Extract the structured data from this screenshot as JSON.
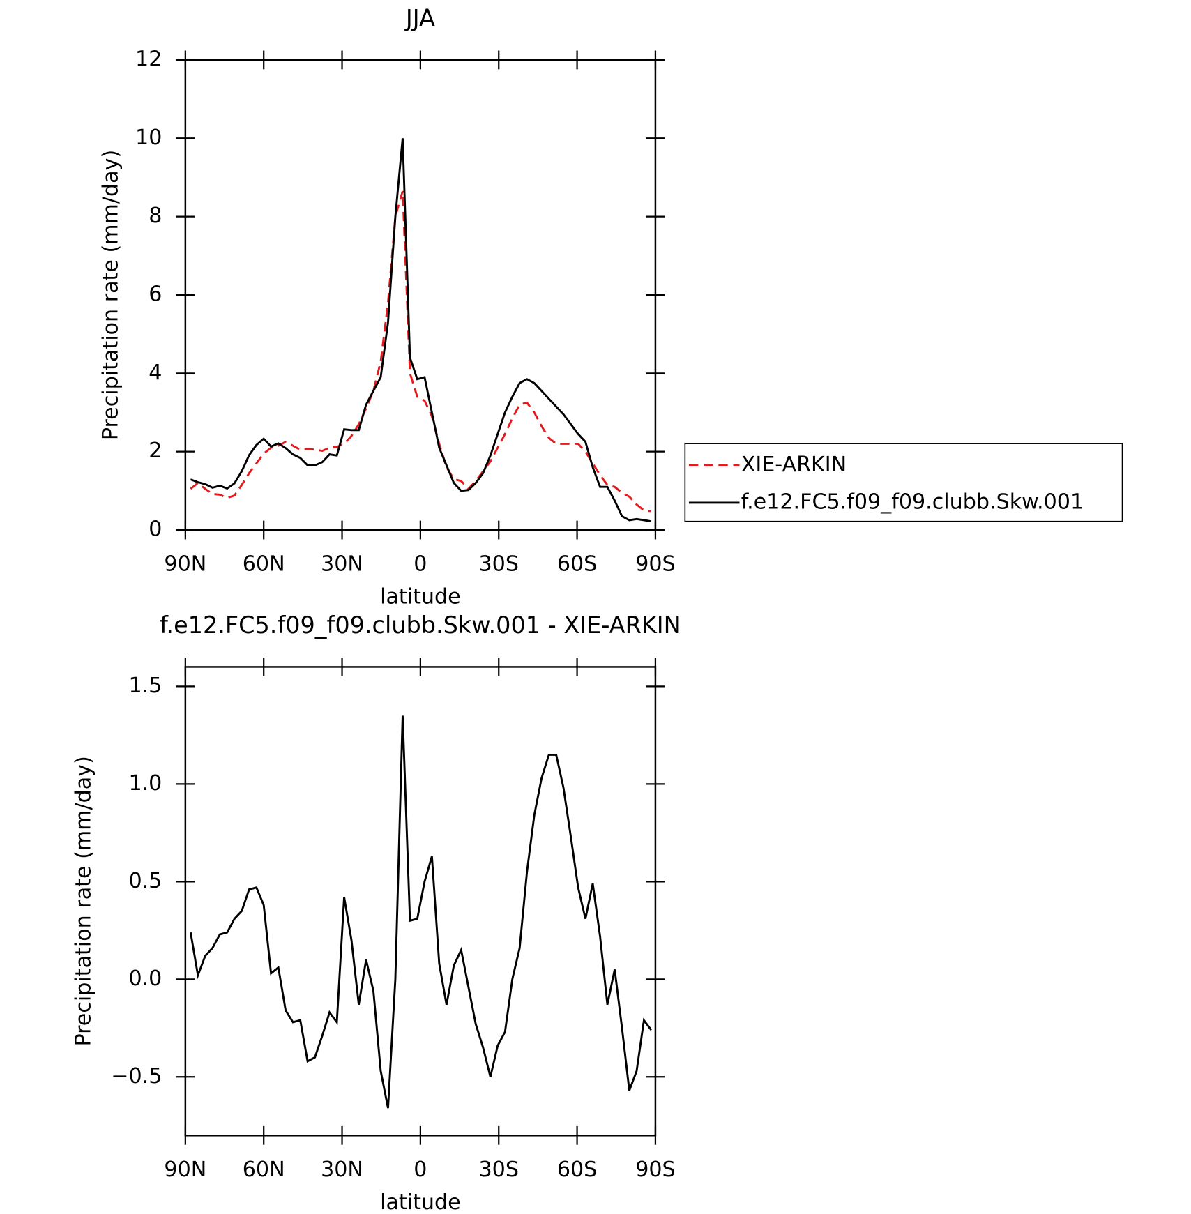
{
  "chart_data": [
    {
      "type": "line",
      "title": "JJA",
      "xlabel": "latitude",
      "ylabel": "Precipitation rate (mm/day)",
      "x": [
        88,
        85.2,
        82.4,
        79.6,
        76.8,
        74,
        71.2,
        68.4,
        65.6,
        62.8,
        60,
        57.2,
        54.4,
        51.6,
        48.8,
        46,
        43.2,
        40.4,
        37.6,
        34.8,
        32,
        29.2,
        26.4,
        23.6,
        20.8,
        18,
        15.2,
        12.4,
        9.6,
        6.8,
        4,
        1.2,
        -1.6,
        -4.4,
        -7.2,
        -10,
        -12.8,
        -15.6,
        -18.4,
        -21.2,
        -24,
        -26.8,
        -29.6,
        -32.4,
        -35.2,
        -38,
        -40.8,
        -43.6,
        -46.4,
        -49.2,
        -52,
        -54.8,
        -57.6,
        -60.4,
        -63.2,
        -66,
        -68.8,
        -71.6,
        -74.4,
        -77.2,
        -80,
        -82.8,
        -85.6,
        -88.4
      ],
      "series": [
        {
          "name": "XIE-ARKIN",
          "color": "#e41a1c",
          "linestyle": "dashed",
          "values": [
            1.05,
            1.2,
            1.05,
            0.92,
            0.9,
            0.82,
            0.88,
            1.15,
            1.45,
            1.7,
            1.95,
            2.1,
            2.15,
            2.25,
            2.15,
            2.05,
            2.07,
            2.05,
            2.02,
            2.1,
            2.12,
            2.2,
            2.4,
            2.7,
            3.1,
            3.55,
            4.3,
            5.8,
            8.0,
            8.65,
            4.0,
            3.4,
            3.3,
            2.9,
            2.2,
            1.6,
            1.3,
            1.25,
            1.05,
            1.25,
            1.5,
            1.75,
            2.1,
            2.45,
            2.85,
            3.2,
            3.25,
            3.0,
            2.65,
            2.35,
            2.2,
            2.2,
            2.2,
            2.2,
            2.0,
            1.7,
            1.4,
            1.15,
            1.1,
            0.95,
            0.85,
            0.65,
            0.5,
            0.48
          ]
        },
        {
          "name": "f.e12.FC5.f09_f09.clubb.Skw.001",
          "color": "#000000",
          "linestyle": "solid",
          "values": [
            1.29,
            1.22,
            1.17,
            1.08,
            1.13,
            1.06,
            1.19,
            1.5,
            1.91,
            2.17,
            2.33,
            2.13,
            2.21,
            2.09,
            1.93,
            1.84,
            1.65,
            1.65,
            1.73,
            1.93,
            1.9,
            2.57,
            2.55,
            2.55,
            3.2,
            3.55,
            3.9,
            5.3,
            8.0,
            10.0,
            4.4,
            3.85,
            3.9,
            3.0,
            2.1,
            1.65,
            1.2,
            1.0,
            1.02,
            1.2,
            1.45,
            1.9,
            2.45,
            3.0,
            3.4,
            3.75,
            3.85,
            3.75,
            3.55,
            3.35,
            3.15,
            2.95,
            2.7,
            2.45,
            2.25,
            1.6,
            1.1,
            1.1,
            0.75,
            0.35,
            0.25,
            0.28,
            0.25,
            0.22
          ]
        }
      ],
      "xlim": [
        90,
        -90
      ],
      "xticks": [
        {
          "value": 90,
          "label": "90N"
        },
        {
          "value": 60,
          "label": "60N"
        },
        {
          "value": 30,
          "label": "30N"
        },
        0,
        {
          "value": -30,
          "label": "30S"
        },
        {
          "value": -60,
          "label": "60S"
        },
        {
          "value": -90,
          "label": "90S"
        }
      ],
      "ylim": [
        0,
        12
      ],
      "yticks": [
        0,
        2,
        4,
        6,
        8,
        10,
        12
      ],
      "legend": "right"
    },
    {
      "type": "line",
      "title": "f.e12.FC5.f09_f09.clubb.Skw.001 - XIE-ARKIN",
      "xlabel": "latitude",
      "ylabel": "Precipitation rate (mm/day)",
      "x": [
        88,
        85.2,
        82.4,
        79.6,
        76.8,
        74,
        71.2,
        68.4,
        65.6,
        62.8,
        60,
        57.2,
        54.4,
        51.6,
        48.8,
        46,
        43.2,
        40.4,
        37.6,
        34.8,
        32,
        29.2,
        26.4,
        23.6,
        20.8,
        18,
        15.2,
        12.4,
        9.6,
        6.8,
        4,
        1.2,
        -1.6,
        -4.4,
        -7.2,
        -10,
        -12.8,
        -15.6,
        -18.4,
        -21.2,
        -24,
        -26.8,
        -29.6,
        -32.4,
        -35.2,
        -38,
        -40.8,
        -43.6,
        -46.4,
        -49.2,
        -52,
        -54.8,
        -57.6,
        -60.4,
        -63.2,
        -66,
        -68.8,
        -71.6,
        -74.4,
        -77.2,
        -80,
        -82.8,
        -85.6,
        -88.4
      ],
      "values": [
        0.24,
        0.02,
        0.12,
        0.16,
        0.23,
        0.24,
        0.31,
        0.35,
        0.46,
        0.47,
        0.38,
        0.03,
        0.06,
        -0.16,
        -0.22,
        -0.21,
        -0.42,
        -0.4,
        -0.29,
        -0.17,
        -0.22,
        0.42,
        0.2,
        -0.13,
        0.1,
        -0.06,
        -0.47,
        -0.66,
        0.0,
        1.35,
        0.3,
        0.31,
        0.5,
        0.63,
        0.08,
        -0.13,
        0.07,
        0.15,
        -0.04,
        -0.23,
        -0.35,
        -0.5,
        -0.34,
        -0.27,
        0.0,
        0.16,
        0.55,
        0.84,
        1.03,
        1.15,
        1.15,
        0.98,
        0.73,
        0.47,
        0.31,
        0.49,
        0.22,
        -0.13,
        0.05,
        -0.25,
        -0.57,
        -0.47,
        -0.21,
        -0.26
      ],
      "color": "#000000",
      "xlim": [
        90,
        -90
      ],
      "xticks": [
        {
          "value": 90,
          "label": "90N"
        },
        {
          "value": 60,
          "label": "60N"
        },
        {
          "value": 30,
          "label": "30N"
        },
        0,
        {
          "value": -30,
          "label": "30S"
        },
        {
          "value": -60,
          "label": "60S"
        },
        {
          "value": -90,
          "label": "90S"
        }
      ],
      "ylim": [
        -0.8,
        1.6
      ],
      "yticks": [
        {
          "value": -0.5,
          "label": "−0.5"
        },
        {
          "value": 0,
          "label": "0.0"
        },
        0.5,
        {
          "value": 1,
          "label": "1.0"
        },
        1.5
      ]
    }
  ]
}
